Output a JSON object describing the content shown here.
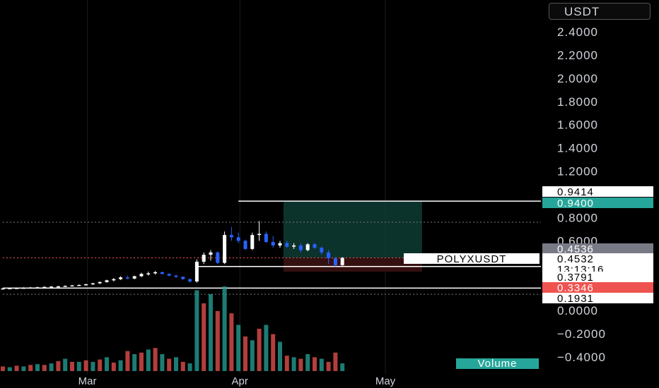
{
  "currency_button": {
    "label": "USDT"
  },
  "symbol": "POLYXUSDT",
  "countdown": "13:13:16",
  "volume_label": "Volume",
  "colors": {
    "up": "#ffffff",
    "down": "#2962ff",
    "vol_up": "#26a69a",
    "vol_down": "#ef5350",
    "target_zone": "#0e3b34",
    "stop_zone": "#3b1212",
    "tag_red": "#ef5350",
    "tag_teal": "#26a69a",
    "tag_gray": "#787b86"
  },
  "chart_data": {
    "type": "candlestick",
    "y_axis": {
      "ticks": [
        {
          "value": 2.4,
          "label": "2.4000"
        },
        {
          "value": 2.2,
          "label": "2.2000"
        },
        {
          "value": 2.0,
          "label": "2.0000"
        },
        {
          "value": 1.8,
          "label": "1.8000"
        },
        {
          "value": 1.6,
          "label": "1.6000"
        },
        {
          "value": 1.4,
          "label": "1.4000"
        },
        {
          "value": 1.2,
          "label": "1.2000"
        },
        {
          "value": 0.8,
          "label": "0.8000"
        },
        {
          "value": 0.6,
          "label": "0.6000"
        },
        {
          "value": 0.0,
          "label": "0.0000"
        },
        {
          "value": -0.2,
          "label": "−0.2000"
        },
        {
          "value": -0.4,
          "label": "−0.4000"
        }
      ],
      "range": [
        -0.46,
        2.6
      ]
    },
    "x_axis": {
      "labels": [
        {
          "label": "Mar",
          "bar": 12
        },
        {
          "label": "Apr",
          "bar": 34
        },
        {
          "label": "May",
          "bar": 55
        }
      ]
    },
    "price_tags": [
      {
        "value": 0.9414,
        "label": "0.9414",
        "style": "white"
      },
      {
        "value": 0.94,
        "label": "0.9400",
        "style": "teal"
      },
      {
        "value": 0.4536,
        "label": "0.4536",
        "style": "gray"
      },
      {
        "value": 0.4532,
        "label": "0.4532",
        "style": "white"
      },
      {
        "value": 0.3791,
        "label": "0.3791",
        "style": "white"
      },
      {
        "value": 0.3346,
        "label": "0.3346",
        "style": "red"
      },
      {
        "value": 0.1931,
        "label": "0.1931",
        "style": "white"
      }
    ],
    "horizontal_lines": [
      {
        "value": 0.9414,
        "from_bar": 34,
        "style": "solid"
      },
      {
        "value": 0.3791,
        "from_bar": 28,
        "style": "solid"
      },
      {
        "value": 0.1931,
        "from_bar": 0,
        "style": "solid"
      },
      {
        "value": 0.76,
        "from_bar": 0,
        "style": "dotted-gray"
      },
      {
        "value": 0.4532,
        "from_bar": 0,
        "style": "dotted-red"
      },
      {
        "value": 0.14,
        "from_bar": 0,
        "style": "dotted-gray"
      }
    ],
    "position": {
      "entry": 0.4532,
      "target": 0.94,
      "stop": 0.3346,
      "from_bar": 40.5,
      "to_bar": 60.5
    },
    "ohlc": [
      [
        0.19,
        0.195,
        0.185,
        0.19
      ],
      [
        0.19,
        0.197,
        0.186,
        0.192
      ],
      [
        0.192,
        0.198,
        0.188,
        0.194
      ],
      [
        0.194,
        0.2,
        0.19,
        0.196
      ],
      [
        0.196,
        0.202,
        0.192,
        0.198
      ],
      [
        0.198,
        0.205,
        0.194,
        0.2
      ],
      [
        0.2,
        0.208,
        0.197,
        0.203
      ],
      [
        0.203,
        0.21,
        0.2,
        0.206
      ],
      [
        0.206,
        0.212,
        0.202,
        0.208
      ],
      [
        0.208,
        0.216,
        0.204,
        0.212
      ],
      [
        0.212,
        0.22,
        0.208,
        0.216
      ],
      [
        0.216,
        0.224,
        0.212,
        0.22
      ],
      [
        0.22,
        0.23,
        0.215,
        0.226
      ],
      [
        0.226,
        0.238,
        0.22,
        0.234
      ],
      [
        0.234,
        0.25,
        0.228,
        0.245
      ],
      [
        0.245,
        0.265,
        0.24,
        0.26
      ],
      [
        0.26,
        0.28,
        0.25,
        0.27
      ],
      [
        0.27,
        0.295,
        0.262,
        0.285
      ],
      [
        0.285,
        0.3,
        0.27,
        0.275
      ],
      [
        0.275,
        0.3,
        0.268,
        0.295
      ],
      [
        0.295,
        0.325,
        0.288,
        0.315
      ],
      [
        0.315,
        0.335,
        0.3,
        0.32
      ],
      [
        0.32,
        0.34,
        0.31,
        0.33
      ],
      [
        0.33,
        0.335,
        0.31,
        0.315
      ],
      [
        0.315,
        0.32,
        0.295,
        0.3
      ],
      [
        0.3,
        0.31,
        0.28,
        0.29
      ],
      [
        0.29,
        0.295,
        0.265,
        0.27
      ],
      [
        0.27,
        0.275,
        0.24,
        0.25
      ],
      [
        0.25,
        0.44,
        0.24,
        0.42
      ],
      [
        0.42,
        0.5,
        0.4,
        0.48
      ],
      [
        0.48,
        0.52,
        0.43,
        0.5
      ],
      [
        0.5,
        0.51,
        0.4,
        0.41
      ],
      [
        0.41,
        0.68,
        0.4,
        0.65
      ],
      [
        0.65,
        0.72,
        0.6,
        0.63
      ],
      [
        0.63,
        0.67,
        0.58,
        0.6
      ],
      [
        0.6,
        0.61,
        0.52,
        0.53
      ],
      [
        0.53,
        0.67,
        0.52,
        0.65
      ],
      [
        0.65,
        0.77,
        0.6,
        0.66
      ],
      [
        0.66,
        0.68,
        0.58,
        0.59
      ],
      [
        0.59,
        0.64,
        0.54,
        0.56
      ],
      [
        0.56,
        0.6,
        0.54,
        0.58
      ],
      [
        0.58,
        0.6,
        0.54,
        0.55
      ],
      [
        0.55,
        0.58,
        0.53,
        0.56
      ],
      [
        0.56,
        0.58,
        0.5,
        0.52
      ],
      [
        0.52,
        0.58,
        0.51,
        0.57
      ],
      [
        0.57,
        0.58,
        0.53,
        0.54
      ],
      [
        0.54,
        0.55,
        0.48,
        0.5
      ],
      [
        0.5,
        0.52,
        0.4,
        0.45
      ],
      [
        0.45,
        0.46,
        0.38,
        0.39
      ],
      [
        0.39,
        0.46,
        0.385,
        0.4532
      ]
    ],
    "volume": [
      [
        6,
        "d"
      ],
      [
        5,
        "u"
      ],
      [
        7,
        "d"
      ],
      [
        6,
        "u"
      ],
      [
        8,
        "d"
      ],
      [
        9,
        "u"
      ],
      [
        8,
        "d"
      ],
      [
        10,
        "u"
      ],
      [
        13,
        "d"
      ],
      [
        16,
        "u"
      ],
      [
        12,
        "d"
      ],
      [
        12,
        "u"
      ],
      [
        14,
        "d"
      ],
      [
        12,
        "u"
      ],
      [
        15,
        "d"
      ],
      [
        18,
        "u"
      ],
      [
        11,
        "d"
      ],
      [
        14,
        "u"
      ],
      [
        26,
        "d"
      ],
      [
        22,
        "u"
      ],
      [
        24,
        "d"
      ],
      [
        28,
        "u"
      ],
      [
        30,
        "d"
      ],
      [
        22,
        "u"
      ],
      [
        16,
        "d"
      ],
      [
        18,
        "u"
      ],
      [
        12,
        "d"
      ],
      [
        10,
        "u"
      ],
      [
        105,
        "u"
      ],
      [
        88,
        "d"
      ],
      [
        100,
        "u"
      ],
      [
        78,
        "d"
      ],
      [
        110,
        "u"
      ],
      [
        75,
        "d"
      ],
      [
        60,
        "u"
      ],
      [
        45,
        "d"
      ],
      [
        40,
        "u"
      ],
      [
        55,
        "d"
      ],
      [
        60,
        "u"
      ],
      [
        48,
        "d"
      ],
      [
        38,
        "u"
      ],
      [
        20,
        "d"
      ],
      [
        18,
        "u"
      ],
      [
        16,
        "d"
      ],
      [
        22,
        "u"
      ],
      [
        18,
        "d"
      ],
      [
        16,
        "u"
      ],
      [
        12,
        "d"
      ],
      [
        24,
        "d"
      ],
      [
        10,
        "u"
      ]
    ],
    "volume_max": 110
  }
}
